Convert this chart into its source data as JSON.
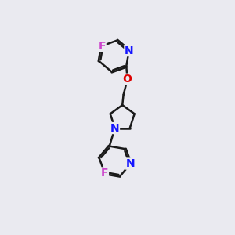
{
  "bg_color": "#eaeaf0",
  "bond_color": "#1a1a1a",
  "N_color": "#1414ff",
  "O_color": "#dd0000",
  "F_color": "#cc44cc",
  "bond_width": 1.8,
  "font_size_atom": 10,
  "figsize": [
    3.0,
    3.0
  ],
  "dpi": 100,
  "xlim": [
    1.5,
    6.5
  ],
  "ylim": [
    0.0,
    10.5
  ]
}
